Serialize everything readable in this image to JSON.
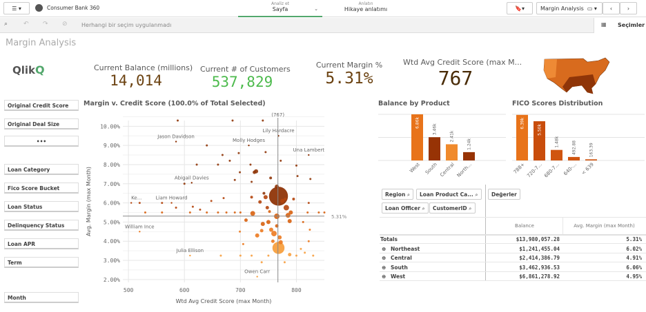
{
  "topbar": {
    "menu_icon": "hamburger-icon",
    "app_name": "Consumer Bank 360",
    "analyze_label": "Analiz et",
    "analyze_value": "Sayfa",
    "narrate_label": "Anlatın",
    "narrate_value": "Hikaye anlatımı",
    "sheet_name": "Margin Analysis"
  },
  "toolbar": {
    "no_selection": "Herhangi bir seçim uygulanmadı",
    "selections": "Seçimler"
  },
  "page_title": "Margin Analysis",
  "logo": "Qlik",
  "kpis": [
    {
      "title": "Current Balance (millions)",
      "value": "14,014",
      "color": "#6b4211"
    },
    {
      "title": "Current # of Customers",
      "value": "537,829",
      "color": "#4cba4c"
    },
    {
      "title": "Current Margin %",
      "value": "5.31%",
      "color": "#6b4211"
    },
    {
      "title": "Wtd Avg Credit Score (max M...",
      "value": "767",
      "color": "#4a2c08"
    }
  ],
  "filters": [
    "Original Credit Score",
    "Original Deal Size",
    "•••",
    "Loan Category",
    "Fico Score Bucket",
    "Loan Status",
    "Delinquency Status",
    "Loan APR",
    "Term",
    "Month"
  ],
  "chart_data": [
    {
      "type": "scatter",
      "title": "Margin v. Credit Score (100.0% of Total Selected)",
      "xlabel": "Wtd Avg Credit Score (max Month)",
      "ylabel": "Avg. Margin (max Month)",
      "xlim": [
        490,
        850
      ],
      "ylim": [
        1.85,
        10.3
      ],
      "xticks": [
        "500",
        "600",
        "700",
        "800"
      ],
      "xtick_values": [
        500,
        600,
        700,
        800
      ],
      "yticks": [
        "2.00%",
        "3.00%",
        "4.00%",
        "5.00%",
        "6.00%",
        "7.00%",
        "8.00%",
        "9.00%",
        "10.00%"
      ],
      "ytick_values": [
        2,
        3,
        4,
        5,
        6,
        7,
        8,
        9,
        10
      ],
      "ref_x": {
        "value": 767,
        "label": "(767)"
      },
      "ref_y": {
        "value": 5.31,
        "label": "5.31%"
      },
      "grid": true,
      "labeled_points": [
        {
          "name": "Jason Davidson",
          "x": 585,
          "y": 9.2
        },
        {
          "name": "Molly Hodges",
          "x": 715,
          "y": 9.0
        },
        {
          "name": "Lily Hardacre",
          "x": 768,
          "y": 9.5
        },
        {
          "name": "Una Lambert",
          "x": 822,
          "y": 8.5
        },
        {
          "name": "Abigail Davies",
          "x": 613,
          "y": 7.05
        },
        {
          "name": "Liam Howard",
          "x": 577,
          "y": 6.0
        },
        {
          "name": "Ke...",
          "x": 505,
          "y": 6.0
        },
        {
          "name": "William Ince",
          "x": 520,
          "y": 4.5
        },
        {
          "name": "Julia Ellison",
          "x": 610,
          "y": 3.25
        },
        {
          "name": "Owen Carr",
          "x": 730,
          "y": 2.15
        }
      ],
      "points": [
        [
          768,
          6.35,
          14
        ],
        [
          768,
          3.65,
          9
        ],
        [
          722,
          5.45,
          3.5
        ],
        [
          765,
          6.85,
          3
        ],
        [
          765,
          5.3,
          4
        ],
        [
          782,
          5.75,
          4
        ],
        [
          788,
          5.05,
          3
        ],
        [
          785,
          5.35,
          3.5
        ],
        [
          760,
          4.4,
          4
        ],
        [
          770,
          4.2,
          3
        ],
        [
          755,
          4.6,
          3
        ],
        [
          740,
          4.9,
          3
        ],
        [
          745,
          6.3,
          3
        ],
        [
          730,
          4.3,
          3
        ],
        [
          750,
          5.0,
          3
        ],
        [
          775,
          6.1,
          3
        ],
        [
          790,
          5.5,
          3
        ],
        [
          735,
          6.05,
          2.5
        ],
        [
          758,
          4.0,
          2.5
        ],
        [
          772,
          3.95,
          3
        ],
        [
          788,
          3.3,
          2.5
        ],
        [
          710,
          5.1,
          2.5
        ],
        [
          725,
          7.6,
          2.5
        ],
        [
          728,
          7.65,
          3
        ],
        [
          754,
          7.3,
          2
        ],
        [
          748,
          5.75,
          2.5
        ],
        [
          780,
          6.2,
          2
        ],
        [
          795,
          6.2,
          2
        ],
        [
          742,
          6.5,
          2
        ],
        [
          738,
          4.55,
          2.5
        ],
        [
          752,
          5.55,
          2
        ],
        [
          765,
          4.8,
          2.5
        ],
        [
          720,
          6.3,
          2
        ],
        [
          700,
          5.5,
          1.5
        ],
        [
          690,
          5.5,
          1.5
        ],
        [
          675,
          5.5,
          1.5
        ],
        [
          660,
          5.5,
          1.5
        ],
        [
          640,
          5.5,
          1.5
        ],
        [
          610,
          5.5,
          1.5
        ],
        [
          560,
          5.5,
          1.5
        ],
        [
          530,
          5.5,
          1.5
        ],
        [
          820,
          5.5,
          1.5
        ],
        [
          840,
          5.5,
          1.5
        ],
        [
          850,
          5.5,
          1.5
        ],
        [
          665,
          3.25,
          1.5
        ],
        [
          700,
          3.25,
          1.5
        ],
        [
          720,
          3.25,
          1.5
        ],
        [
          750,
          3.25,
          1.5
        ],
        [
          800,
          3.25,
          1.5
        ],
        [
          830,
          3.25,
          1.5
        ],
        [
          815,
          3.4,
          1.5
        ],
        [
          738,
          2.9,
          1.5
        ],
        [
          779,
          2.9,
          1.5
        ],
        [
          648,
          6.1,
          1.5
        ],
        [
          670,
          6.25,
          1.5
        ],
        [
          588,
          10.3,
          1.5
        ],
        [
          686,
          10.3,
          1.5
        ],
        [
          740,
          10.3,
          1.5
        ],
        [
          640,
          9.0,
          1.5
        ],
        [
          668,
          8.5,
          1.5
        ],
        [
          697,
          8.6,
          1.5
        ],
        [
          745,
          8.65,
          1.5
        ],
        [
          622,
          8.0,
          1.5
        ],
        [
          660,
          8.0,
          1.5
        ],
        [
          681,
          8.2,
          1.5
        ],
        [
          718,
          8.0,
          1.5
        ],
        [
          772,
          8.2,
          1.5
        ],
        [
          800,
          7.95,
          1.5
        ],
        [
          699,
          7.6,
          1.5
        ],
        [
          690,
          7.2,
          1.5
        ],
        [
          802,
          7.4,
          1.5
        ],
        [
          825,
          7.25,
          1.5
        ],
        [
          720,
          7.1,
          1.5
        ],
        [
          600,
          7.0,
          1.5
        ],
        [
          699,
          4.5,
          1.5
        ],
        [
          705,
          3.85,
          1.5
        ],
        [
          822,
          4.0,
          1.5
        ],
        [
          824,
          4.6,
          1.5
        ],
        [
          812,
          5.0,
          1.5
        ],
        [
          822,
          6.0,
          1.5
        ],
        [
          808,
          3.6,
          1.5
        ],
        [
          585,
          5.75,
          1.5
        ],
        [
          520,
          6.0,
          1.5
        ],
        [
          560,
          6.0,
          1.5
        ],
        [
          615,
          5.8,
          1.5
        ],
        [
          628,
          5.65,
          1.5
        ]
      ]
    },
    {
      "type": "bar",
      "title": "Balance by Product",
      "categories": [
        "West",
        "South",
        "Central",
        "North..."
      ],
      "values": [
        6.86,
        3.46,
        2.41,
        1.24
      ],
      "labels": [
        "6.86k",
        "3.46k",
        "2.41k",
        "1.24k"
      ],
      "ylim": [
        0,
        7
      ],
      "colors": [
        "#e8731a",
        "#973305",
        "#f08a2c",
        "#973305"
      ]
    },
    {
      "type": "bar",
      "title": "FICO Scores Distribution",
      "categories": [
        "788+",
        "720-7...",
        "680-7...",
        "640-...",
        "< 639"
      ],
      "values": [
        6.39,
        5.5,
        1.48,
        0.4929,
        0.1634
      ],
      "labels": [
        "6.39k",
        "5.50k",
        "1.48k",
        "492.88",
        "163.39"
      ],
      "ylim": [
        0,
        6.6
      ],
      "colors": [
        "#e8731a",
        "#c94d0c",
        "#d05510",
        "#d05510",
        "#d05510"
      ]
    },
    {
      "type": "table",
      "dimension_chips": [
        "Region",
        "Loan Product Ca...",
        "Loan Officer",
        "CustomerID"
      ],
      "values_chip": "Değerler",
      "columns": [
        "Balance",
        "Avg. Margin (max Month)"
      ],
      "rows": [
        {
          "label": "Totals",
          "balance": "$13,980,057.28",
          "margin": "5.31%"
        },
        {
          "label": "Northeast",
          "balance": "$1,241,455.04",
          "margin": "6.02%"
        },
        {
          "label": "Central",
          "balance": "$2,414,386.79",
          "margin": "4.91%"
        },
        {
          "label": "South",
          "balance": "$3,462,936.53",
          "margin": "6.06%"
        },
        {
          "label": "West",
          "balance": "$6,861,278.92",
          "margin": "4.95%"
        }
      ]
    }
  ]
}
